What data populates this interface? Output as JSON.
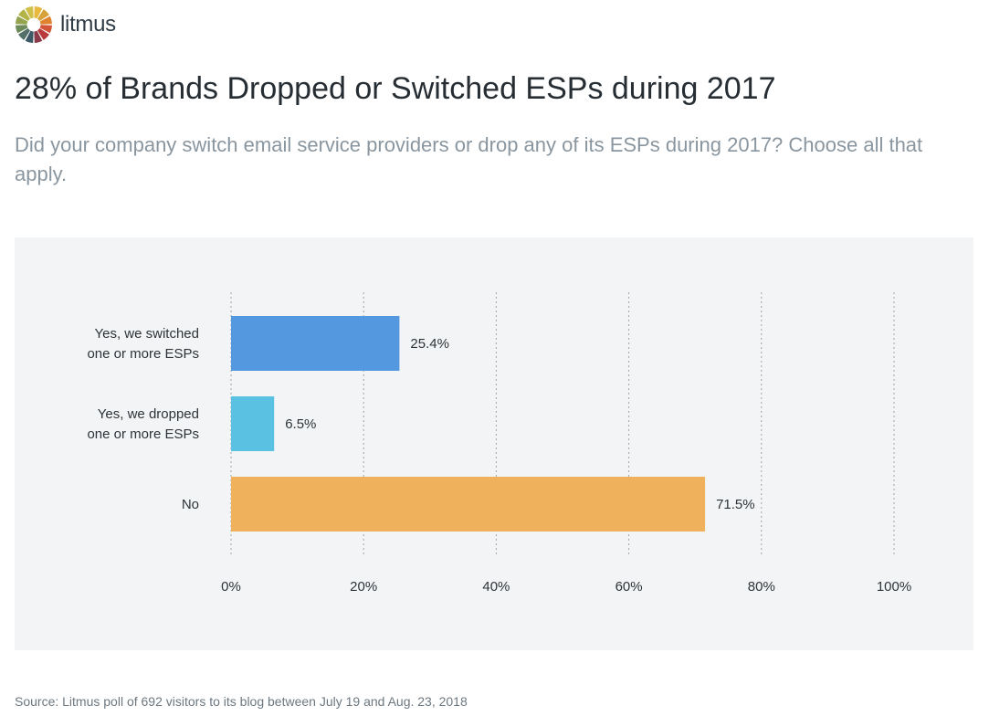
{
  "brand": {
    "name": "litmus",
    "logo_colors": [
      "#e8b93c",
      "#d8a23a",
      "#e0832f",
      "#d2553a",
      "#b83a3a",
      "#8b3a4a",
      "#3d5866",
      "#546e68",
      "#6c8a5a",
      "#93a34e",
      "#b4b348",
      "#d0c04a"
    ]
  },
  "title": "28% of Brands Dropped or Switched ESPs during 2017",
  "subtitle": "Did your company switch email service providers or drop any of its ESPs during 2017? Choose all that apply.",
  "source": "Source: Litmus poll of 692 visitors to its blog between July 19 and Aug. 23, 2018",
  "chart_data": {
    "type": "bar",
    "orientation": "horizontal",
    "categories": [
      [
        "Yes, we switched",
        "one or more ESPs"
      ],
      [
        "Yes, we dropped",
        "one or more ESPs"
      ],
      [
        "No"
      ]
    ],
    "values": [
      25.4,
      6.5,
      71.5
    ],
    "value_labels": [
      "25.4%",
      "6.5%",
      "71.5%"
    ],
    "colors": [
      "#5499df",
      "#5ac1e3",
      "#f0b15d"
    ],
    "xlim": [
      0,
      100
    ],
    "x_ticks": [
      0,
      20,
      40,
      60,
      80,
      100
    ],
    "x_tick_labels": [
      "0%",
      "20%",
      "40%",
      "60%",
      "80%",
      "100%"
    ],
    "grid": true,
    "title": "",
    "xlabel": "",
    "ylabel": ""
  }
}
